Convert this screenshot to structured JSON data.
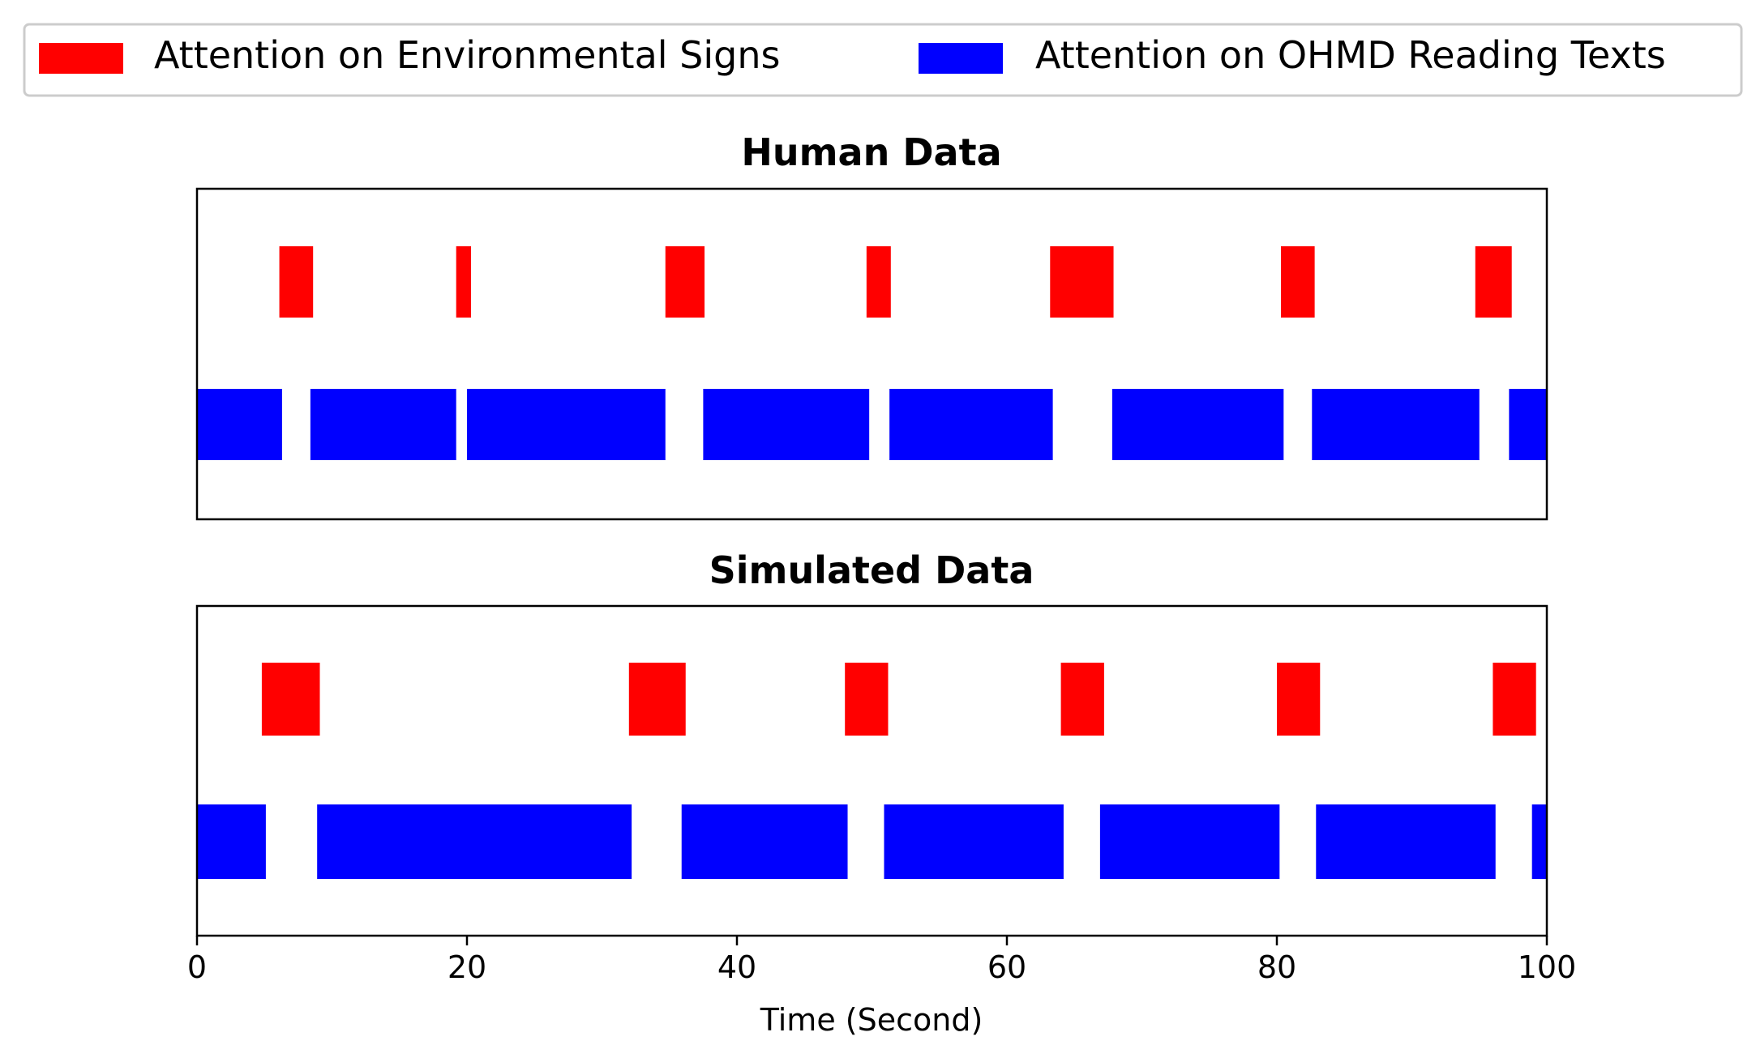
{
  "legend": {
    "placement": "top-center",
    "entries": [
      {
        "label": "Attention on Environmental Signs",
        "color": "#ff0000"
      },
      {
        "label": "Attention on OHMD Reading Texts",
        "color": "#0000ff"
      }
    ]
  },
  "chart_data": [
    {
      "type": "bar",
      "subtype": "timeline",
      "title": "Human Data",
      "xlim": [
        0,
        100
      ],
      "show_xaxis": false,
      "grid": false,
      "series": [
        {
          "name": "Attention on Environmental Signs",
          "color": "#ff0000",
          "lane": "upper",
          "intervals": [
            [
              6.1,
              8.6
            ],
            [
              19.2,
              20.3
            ],
            [
              34.7,
              37.6
            ],
            [
              49.6,
              51.4
            ],
            [
              63.2,
              67.9
            ],
            [
              80.3,
              82.8
            ],
            [
              94.7,
              97.4
            ]
          ]
        },
        {
          "name": "Attention on OHMD Reading Texts",
          "color": "#0000ff",
          "lane": "lower",
          "intervals": [
            [
              0,
              6.3
            ],
            [
              8.4,
              19.2
            ],
            [
              20.0,
              34.7
            ],
            [
              37.5,
              49.8
            ],
            [
              51.3,
              63.4
            ],
            [
              67.8,
              80.5
            ],
            [
              82.6,
              95.0
            ],
            [
              97.2,
              100
            ]
          ]
        }
      ]
    },
    {
      "type": "bar",
      "subtype": "timeline",
      "title": "Simulated Data",
      "xlim": [
        0,
        100
      ],
      "xlabel": "Time (Second)",
      "xticks": [
        0,
        20,
        40,
        60,
        80,
        100
      ],
      "xtick_labels": [
        "0",
        "20",
        "40",
        "60",
        "80",
        "100"
      ],
      "grid": false,
      "series": [
        {
          "name": "Attention on Environmental Signs",
          "color": "#ff0000",
          "lane": "upper",
          "intervals": [
            [
              4.8,
              9.1
            ],
            [
              32.0,
              36.2
            ],
            [
              48.0,
              51.2
            ],
            [
              64.0,
              67.2
            ],
            [
              80.0,
              83.2
            ],
            [
              96.0,
              99.2
            ]
          ]
        },
        {
          "name": "Attention on OHMD Reading Texts",
          "color": "#0000ff",
          "lane": "lower",
          "intervals": [
            [
              0,
              5.1
            ],
            [
              8.9,
              32.2
            ],
            [
              35.9,
              48.2
            ],
            [
              50.9,
              64.2
            ],
            [
              66.9,
              80.2
            ],
            [
              82.9,
              96.2
            ],
            [
              98.9,
              100
            ]
          ]
        }
      ]
    }
  ]
}
